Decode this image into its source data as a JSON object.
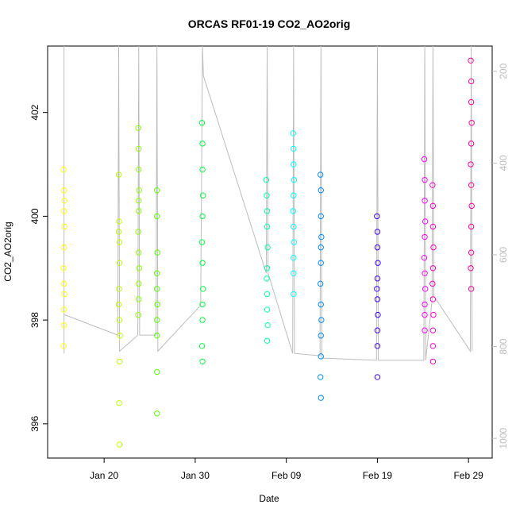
{
  "chart_data": {
    "type": "scatter",
    "title": "ORCAS RF01-19 CO2_AO2orig",
    "x_label": "Date",
    "y_label": "CO2_AO2orig",
    "xlim": [
      13.8,
      62.6
    ],
    "xticks": [
      {
        "value": 20,
        "label": "Jan 20"
      },
      {
        "value": 30,
        "label": "Jan 30"
      },
      {
        "value": 40,
        "label": "Feb 09"
      },
      {
        "value": 50,
        "label": "Feb 19"
      },
      {
        "value": 60,
        "label": "Feb 29"
      }
    ],
    "ylim": [
      395.34,
      403.28
    ],
    "yticks": [
      396,
      398,
      400,
      402
    ],
    "y2lim": [
      1043,
      145
    ],
    "y2ticks": [
      200,
      400,
      600,
      800,
      1000
    ],
    "series": [
      {
        "color": "#ffff00",
        "x": [
          15.55,
          15.6,
          15.6,
          15.65,
          15.6,
          15.55,
          15.6,
          15.65,
          15.6,
          15.6,
          15.55,
          15.65
        ],
        "values": [
          400.9,
          400.5,
          400.1,
          399.8,
          399.4,
          399.0,
          398.7,
          398.5,
          398.2,
          397.9,
          397.5,
          400.3
        ]
      },
      {
        "color": "#bfff00",
        "x": [
          21.6,
          21.65,
          21.7,
          21.7,
          21.65,
          21.6,
          21.7,
          21.75,
          21.7,
          21.65,
          21.7,
          21.6
        ],
        "values": [
          400.8,
          399.9,
          399.5,
          399.1,
          398.6,
          398.3,
          398.0,
          397.7,
          397.2,
          396.4,
          395.6,
          399.7
        ]
      },
      {
        "color": "#8cff00",
        "x": [
          23.75,
          23.8,
          23.8,
          23.85,
          23.8,
          23.75,
          23.8,
          23.85,
          23.8,
          23.8,
          23.75,
          23.8
        ],
        "values": [
          401.7,
          401.3,
          400.9,
          400.5,
          400.1,
          399.7,
          399.3,
          399.0,
          398.7,
          398.4,
          398.1,
          400.3
        ]
      },
      {
        "color": "#59ff00",
        "x": [
          25.8,
          25.8,
          25.85,
          25.8,
          25.8,
          25.85,
          25.8,
          25.8,
          25.8,
          25.8
        ],
        "values": [
          400.5,
          400.0,
          399.3,
          398.9,
          398.6,
          398.3,
          398.0,
          397.7,
          397.0,
          396.2
        ]
      },
      {
        "color": "#00ff40",
        "x": [
          30.75,
          30.8,
          30.8,
          30.85,
          30.8,
          30.75,
          30.8,
          30.85,
          30.8,
          30.8,
          30.75,
          30.8
        ],
        "values": [
          401.8,
          401.4,
          400.9,
          400.4,
          400.0,
          399.5,
          399.1,
          398.6,
          398.3,
          398.0,
          397.5,
          397.2
        ]
      },
      {
        "color": "#00ffb0",
        "x": [
          37.8,
          37.85,
          37.9,
          37.9,
          37.95,
          37.9,
          37.85,
          37.9,
          37.9,
          37.95,
          37.9
        ],
        "values": [
          400.7,
          400.4,
          400.1,
          399.8,
          399.4,
          399.0,
          398.8,
          398.5,
          398.2,
          397.9,
          397.6
        ]
      },
      {
        "color": "#00ffff",
        "x": [
          40.75,
          40.8,
          40.8,
          40.85,
          40.8,
          40.75,
          40.8,
          40.85,
          40.8,
          40.8,
          40.8
        ],
        "values": [
          401.6,
          401.3,
          401.0,
          400.7,
          400.4,
          400.1,
          399.8,
          399.5,
          399.2,
          398.9,
          398.5
        ]
      },
      {
        "color": "#0090ff",
        "x": [
          43.75,
          43.8,
          43.8,
          43.85,
          43.8,
          43.75,
          43.8,
          43.85,
          43.8,
          43.8,
          43.75,
          43.8,
          43.8
        ],
        "values": [
          400.8,
          400.5,
          400.0,
          399.6,
          399.1,
          398.7,
          398.3,
          398.0,
          397.7,
          397.3,
          396.9,
          396.5,
          399.4
        ]
      },
      {
        "color": "#4000ff",
        "x": [
          49.95,
          50.0,
          50.0,
          50.05,
          50.0,
          49.95,
          50.0,
          50.05,
          50.0,
          50.0,
          50.0
        ],
        "values": [
          400.0,
          399.7,
          399.4,
          399.1,
          398.8,
          398.6,
          398.4,
          398.1,
          397.8,
          397.5,
          396.9
        ]
      },
      {
        "color": "#ff00ff",
        "x": [
          55.15,
          55.2,
          55.2,
          55.25,
          55.2,
          55.15,
          55.2,
          55.25,
          55.2,
          55.2,
          55.2
        ],
        "values": [
          401.1,
          400.7,
          400.3,
          399.9,
          399.6,
          399.2,
          398.9,
          398.6,
          398.3,
          398.1,
          397.8
        ]
      },
      {
        "color": "#ff00c8",
        "x": [
          56.05,
          56.1,
          56.1,
          56.15,
          56.1,
          56.05,
          56.1,
          56.15,
          56.1,
          56.1,
          56.1
        ],
        "values": [
          400.6,
          400.2,
          399.8,
          399.4,
          399.0,
          398.7,
          398.4,
          398.1,
          397.8,
          397.5,
          397.2
        ]
      },
      {
        "color": "#ff0096",
        "x": [
          60.25,
          60.3,
          60.3,
          60.35,
          60.3,
          60.25,
          60.3,
          60.35,
          60.3,
          60.3,
          60.25,
          60.3
        ],
        "values": [
          403.0,
          402.6,
          402.2,
          401.8,
          401.4,
          401.0,
          400.6,
          400.2,
          399.8,
          399.3,
          399.0,
          398.6
        ]
      },
      {
        "axis": "y2",
        "color": "#bdbdbd",
        "x": [
          15.6,
          15.6,
          15.6,
          21.5,
          21.6,
          21.7,
          23.7,
          23.8,
          23.9,
          25.7,
          25.8,
          25.9,
          30.6,
          30.8,
          30.9,
          37.8,
          37.9,
          38.0,
          40.7,
          40.8,
          40.9,
          43.7,
          43.8,
          43.9,
          49.9,
          50.0,
          50.1,
          55.1,
          55.2,
          55.3,
          56.0,
          56.1,
          56.2,
          60.2,
          60.3,
          60.4
        ],
        "values": [
          815,
          145,
          730,
          775,
          145,
          810,
          775,
          145,
          775,
          775,
          145,
          810,
          710,
          145,
          210,
          640,
          145,
          640,
          815,
          145,
          815,
          820,
          145,
          825,
          830,
          145,
          830,
          830,
          145,
          830,
          700,
          145,
          690,
          810,
          145,
          810
        ]
      }
    ]
  }
}
